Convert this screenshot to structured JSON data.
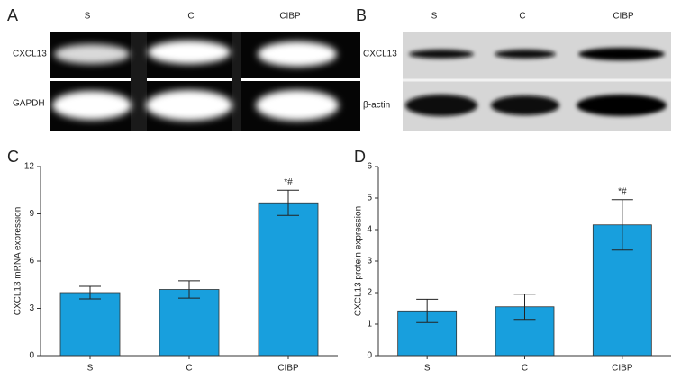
{
  "panels": [
    {
      "letter": "A",
      "lanes": [
        "S",
        "C",
        "CIBP"
      ],
      "rows": [
        "CXCL13",
        "GAPDH"
      ]
    },
    {
      "letter": "B",
      "lanes": [
        "S",
        "C",
        "CIBP"
      ],
      "rows": [
        "CXCL13",
        "β-actin"
      ]
    }
  ],
  "chart_data": [
    {
      "type": "bar",
      "panel": "C",
      "ylabel": "CXCL13 mRNA expression",
      "categories": [
        "S",
        "C",
        "CIBP"
      ],
      "values": [
        4.0,
        4.2,
        9.7
      ],
      "errors": [
        0.4,
        0.55,
        0.8
      ],
      "color": "#189fdd",
      "ylim": [
        0,
        12
      ],
      "yticks": [
        0,
        3,
        6,
        9,
        12
      ],
      "annotations": [
        {
          "category": "CIBP",
          "text": "*#"
        }
      ]
    },
    {
      "type": "bar",
      "panel": "D",
      "ylabel": "CXCL13 protein expression",
      "categories": [
        "S",
        "C",
        "CIBP"
      ],
      "values": [
        1.42,
        1.55,
        4.15
      ],
      "errors": [
        0.37,
        0.4,
        0.8
      ],
      "color": "#189fdd",
      "ylim": [
        0,
        6
      ],
      "yticks": [
        0,
        1,
        2,
        3,
        4,
        5,
        6
      ],
      "annotations": [
        {
          "category": "CIBP",
          "text": "*#"
        }
      ]
    }
  ]
}
